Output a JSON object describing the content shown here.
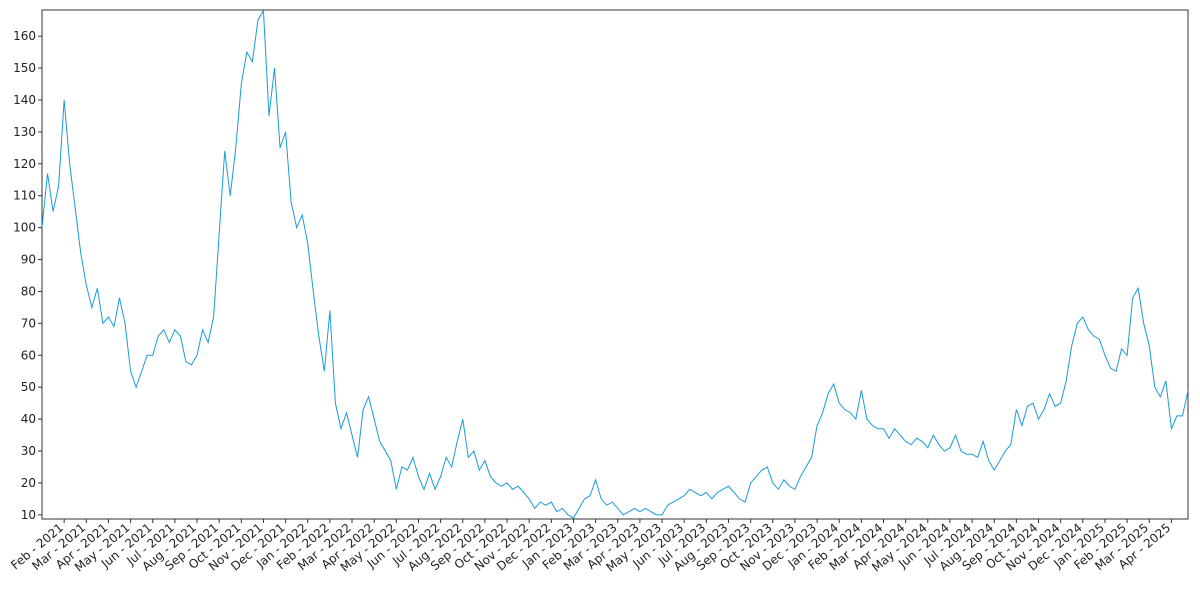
{
  "chart_data": {
    "type": "line",
    "color": "#1a9bd7",
    "ylim": [
      8.7,
      168.2
    ],
    "yticks": [
      10,
      20,
      30,
      40,
      50,
      60,
      70,
      80,
      90,
      100,
      110,
      120,
      130,
      140,
      150,
      160
    ],
    "categories": [
      null,
      null,
      null,
      null,
      "Feb - 2021",
      null,
      null,
      null,
      "Mar - 2021",
      null,
      null,
      null,
      "Apr - 2021",
      null,
      null,
      null,
      "May - 2021",
      null,
      null,
      null,
      "Jun - 2021",
      null,
      null,
      null,
      "Jul - 2021",
      null,
      null,
      null,
      "Aug - 2021",
      null,
      null,
      null,
      "Sep - 2021",
      null,
      null,
      null,
      "Oct - 2021",
      null,
      null,
      null,
      "Nov - 2021",
      null,
      null,
      null,
      "Dec - 2021",
      null,
      null,
      null,
      "Jan - 2022",
      null,
      null,
      null,
      "Feb - 2022",
      null,
      null,
      null,
      "Mar - 2022",
      null,
      null,
      null,
      "Apr - 2022",
      null,
      null,
      null,
      "May - 2022",
      null,
      null,
      null,
      "Jun - 2022",
      null,
      null,
      null,
      "Jul - 2022",
      null,
      null,
      null,
      "Aug - 2022",
      null,
      null,
      null,
      "Sep - 2022",
      null,
      null,
      null,
      "Oct - 2022",
      null,
      null,
      null,
      "Nov - 2022",
      null,
      null,
      null,
      "Dec - 2022",
      null,
      null,
      null,
      "Jan - 2023",
      null,
      null,
      null,
      "Feb - 2023",
      null,
      null,
      null,
      "Mar - 2023",
      null,
      null,
      null,
      "Apr - 2023",
      null,
      null,
      null,
      "May - 2023",
      null,
      null,
      null,
      "Jun - 2023",
      null,
      null,
      null,
      "Jul - 2023",
      null,
      null,
      null,
      "Aug - 2023",
      null,
      null,
      null,
      "Sep - 2023",
      null,
      null,
      null,
      "Oct - 2023",
      null,
      null,
      null,
      "Nov - 2023",
      null,
      null,
      null,
      "Dec - 2023",
      null,
      null,
      null,
      "Jan - 2024",
      null,
      null,
      null,
      "Feb - 2024",
      null,
      null,
      null,
      "Mar - 2024",
      null,
      null,
      null,
      "Apr - 2024",
      null,
      null,
      null,
      "May - 2024",
      null,
      null,
      null,
      "Jun - 2024",
      null,
      null,
      null,
      "Jul - 2024",
      null,
      null,
      null,
      "Aug - 2024",
      null,
      null,
      null,
      "Sep - 2024",
      null,
      null,
      null,
      "Oct - 2024",
      null,
      null,
      null,
      "Nov - 2024",
      null,
      null,
      null,
      "Dec - 2024",
      null,
      null,
      null,
      "Jan - 2025",
      null,
      null,
      null,
      "Feb - 2025",
      null,
      null,
      null,
      "Mar - 2025",
      null,
      null,
      null,
      "Apr - 2025",
      null,
      null,
      null
    ],
    "values": [
      100,
      117,
      105,
      113,
      140,
      120,
      106,
      92,
      82,
      75,
      81,
      70,
      72,
      69,
      78,
      70,
      55,
      50,
      55,
      60,
      60,
      66,
      68,
      64,
      68,
      66,
      58,
      57,
      60,
      68,
      64,
      72,
      98,
      124,
      110,
      125,
      145,
      155,
      152,
      165,
      168,
      135,
      150,
      125,
      130,
      108,
      100,
      104,
      95,
      80,
      66,
      55,
      74,
      45,
      37,
      42,
      35,
      28,
      43,
      47,
      40,
      33,
      30,
      27,
      18,
      25,
      24,
      28,
      22,
      18,
      23,
      18,
      22,
      28,
      25,
      33,
      40,
      28,
      30,
      24,
      27,
      22,
      20,
      19,
      20,
      18,
      19,
      17,
      15,
      12,
      14,
      13,
      14,
      11,
      12,
      10,
      9,
      12,
      15,
      16,
      21,
      15,
      13,
      14,
      12,
      10,
      11,
      12,
      11,
      12,
      11,
      10,
      10,
      13,
      14,
      15,
      16,
      18,
      17,
      16,
      17,
      15,
      17,
      18,
      19,
      17,
      15,
      14,
      20,
      22,
      24,
      25,
      20,
      18,
      21,
      19,
      18,
      22,
      25,
      28,
      38,
      42,
      48,
      51,
      45,
      43,
      42,
      40,
      49,
      40,
      38,
      37,
      37,
      34,
      37,
      35,
      33,
      32,
      34,
      33,
      31,
      35,
      32,
      30,
      31,
      35,
      30,
      29,
      29,
      28,
      33,
      27,
      24,
      27,
      30,
      32,
      43,
      38,
      44,
      45,
      40,
      43,
      48,
      44,
      45,
      52,
      63,
      70,
      72,
      68,
      66,
      65,
      60,
      56,
      55,
      62,
      60,
      78,
      81,
      70,
      63,
      50,
      47,
      52,
      37,
      41,
      41,
      49
    ]
  }
}
